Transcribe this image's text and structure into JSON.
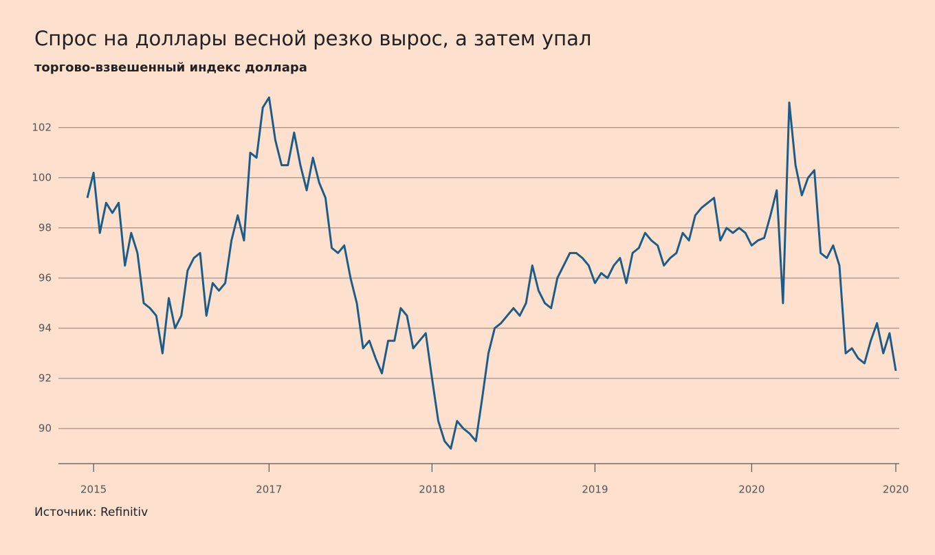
{
  "chart_data": {
    "type": "line",
    "title": "Спрос на доллары весной резко вырос, а затем упал",
    "subtitle": "торгово-взвешенный индекс доллара",
    "source": "Источник: Refinitiv",
    "series": [
      {
        "color": "#1d5c87",
        "values": [
          99.2,
          100.2,
          97.8,
          99.0,
          98.6,
          99.0,
          96.5,
          97.8,
          97.0,
          95.0,
          94.8,
          94.5,
          93.0,
          95.2,
          94.0,
          94.5,
          96.3,
          96.8,
          97.0,
          94.5,
          95.8,
          95.5,
          95.8,
          97.5,
          98.5,
          97.5,
          101.0,
          100.8,
          102.8,
          103.2,
          101.5,
          100.5,
          100.5,
          101.8,
          100.5,
          99.5,
          100.8,
          99.8,
          99.2,
          97.2,
          97.0,
          97.3,
          96.0,
          95.0,
          93.2,
          93.5,
          92.8,
          92.2,
          93.5,
          93.5,
          94.8,
          94.5,
          93.2,
          93.5,
          93.8,
          92.0,
          90.3,
          89.5,
          89.2,
          90.3,
          90.0,
          89.8,
          89.5,
          91.2,
          93.0,
          94.0,
          94.2,
          94.5,
          94.8,
          94.5,
          95.0,
          96.5,
          95.5,
          95.0,
          94.8,
          96.0,
          96.5,
          97.0,
          97.0,
          96.8,
          96.5,
          95.8,
          96.2,
          96.0,
          96.5,
          96.8,
          95.8,
          97.0,
          97.2,
          97.8,
          97.5,
          97.3,
          96.5,
          96.8,
          97.0,
          97.8,
          97.5,
          98.5,
          98.8,
          99.0,
          99.2,
          97.5,
          98.0,
          97.8,
          98.0,
          97.8,
          97.3,
          97.5,
          97.6,
          98.5,
          99.5,
          95.0,
          103.0,
          100.5,
          99.3,
          100.0,
          100.3,
          97.0,
          96.8,
          97.3,
          96.5,
          93.0,
          93.2,
          92.8,
          92.6,
          93.5,
          94.2,
          93.0,
          93.8,
          92.3
        ]
      }
    ],
    "xlim": [
      0,
      129
    ],
    "xticks": [
      {
        "value": 1,
        "label": "2015"
      },
      {
        "value": 29,
        "label": "2017"
      },
      {
        "value": 55,
        "label": "2018"
      },
      {
        "value": 81,
        "label": "2019"
      },
      {
        "value": 106,
        "label": "2020"
      },
      {
        "value": 129,
        "label": "2020"
      }
    ],
    "ylim": [
      88.6,
      103.5
    ],
    "yticks": [
      90,
      92,
      94,
      96,
      98,
      100,
      102
    ],
    "grid": true
  }
}
